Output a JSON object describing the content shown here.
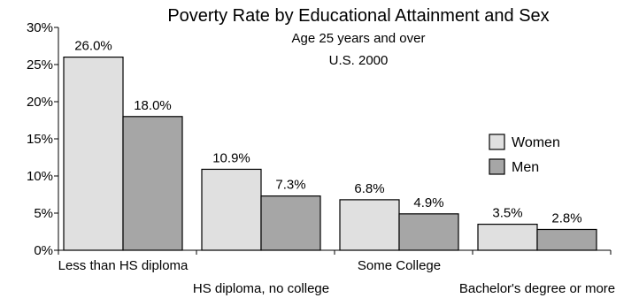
{
  "chart_data": {
    "type": "bar",
    "title": "Poverty Rate by Educational Attainment and Sex",
    "subtitle_lines": [
      "Age 25 years and over",
      "U.S. 2000"
    ],
    "categories": [
      "Less than HS diploma",
      "HS diploma, no college",
      "Some College",
      "Bachelor's degree or more"
    ],
    "series": [
      {
        "name": "Women",
        "color": "#e0e0e0",
        "values": [
          26.0,
          10.9,
          6.8,
          3.5
        ],
        "labels": [
          "26.0%",
          "10.9%",
          "6.8%",
          "3.5%"
        ]
      },
      {
        "name": "Men",
        "color": "#a6a6a6",
        "values": [
          18.0,
          7.3,
          4.9,
          2.8
        ],
        "labels": [
          "18.0%",
          "7.3%",
          "4.9%",
          "2.8%"
        ]
      }
    ],
    "ylim": [
      0,
      30
    ],
    "yticks": [
      0,
      5,
      10,
      15,
      20,
      25,
      30
    ],
    "ytick_labels": [
      "0%",
      "5%",
      "10%",
      "15%",
      "20%",
      "25%",
      "30%"
    ],
    "xlabel": "",
    "ylabel": "",
    "grid": false,
    "legend": "right"
  }
}
